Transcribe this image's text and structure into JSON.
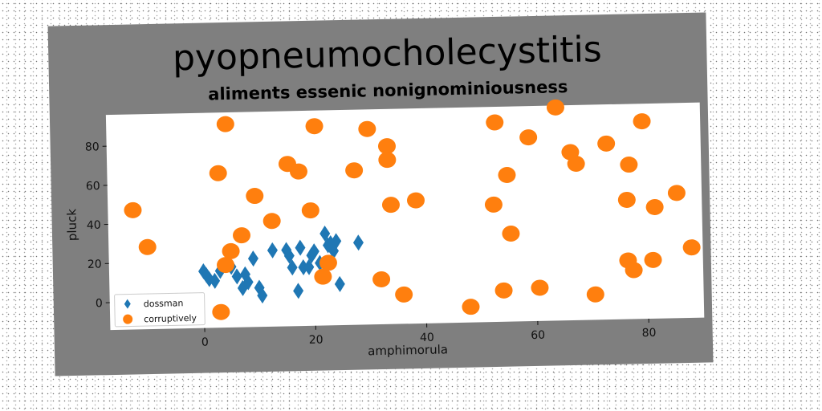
{
  "chart_data": {
    "type": "scatter",
    "title": "pyopneumocholecystitis",
    "subtitle": "aliments essenic nonignominiousness",
    "xlabel": "amphimorula",
    "ylabel": "pluck",
    "xlim": [
      -17,
      90
    ],
    "ylim": [
      -14,
      96
    ],
    "xticks": [
      0,
      20,
      40,
      60,
      80
    ],
    "yticks": [
      0,
      20,
      40,
      60,
      80
    ],
    "grid": false,
    "legend_position": "lower-left",
    "series": [
      {
        "name": "dossman",
        "marker": "diamond",
        "color": "#1f77b4",
        "x": [
          0,
          0.5,
          1,
          2,
          3,
          5,
          6,
          7,
          7.5,
          8,
          9,
          10,
          10.5,
          12.5,
          15,
          15.5,
          16,
          17,
          17.5,
          18,
          19,
          19.5,
          20,
          21,
          22,
          22.5,
          23,
          23.5,
          24,
          24.5,
          28
        ],
        "y": [
          15,
          13,
          11,
          10,
          15,
          17,
          12,
          6,
          13,
          9,
          21,
          6,
          2,
          25,
          25,
          22,
          16,
          4,
          26,
          16,
          16,
          22,
          24,
          18,
          33,
          27,
          28,
          24,
          29,
          7,
          28
        ]
      },
      {
        "name": "corruptively",
        "marker": "circle",
        "color": "#ff7f0e",
        "x": [
          -12.5,
          -10,
          3,
          3,
          4,
          4.5,
          5,
          7,
          9.5,
          12.5,
          15.5,
          17.5,
          19.5,
          20.5,
          21.5,
          22.5,
          27.5,
          30,
          32,
          33.5,
          33.5,
          34,
          36,
          38.5,
          48,
          52.5,
          53,
          54,
          55,
          55.5,
          59,
          60.5,
          64,
          66.5,
          67.5,
          70.5,
          73,
          76.5,
          76.5,
          77,
          77.5,
          79.5,
          81,
          81.5,
          85.5,
          88
        ],
        "y": [
          47,
          28,
          65,
          -6,
          18,
          90,
          25,
          33,
          53,
          40,
          69,
          65,
          45,
          88,
          11,
          18,
          65,
          86,
          9,
          77,
          70,
          47,
          1,
          49,
          -6,
          46,
          88,
          2,
          61,
          31,
          80,
          3,
          95,
          72,
          66,
          -1,
          76,
          47,
          16,
          65,
          11,
          87,
          16,
          43,
          50,
          22
        ]
      }
    ]
  }
}
